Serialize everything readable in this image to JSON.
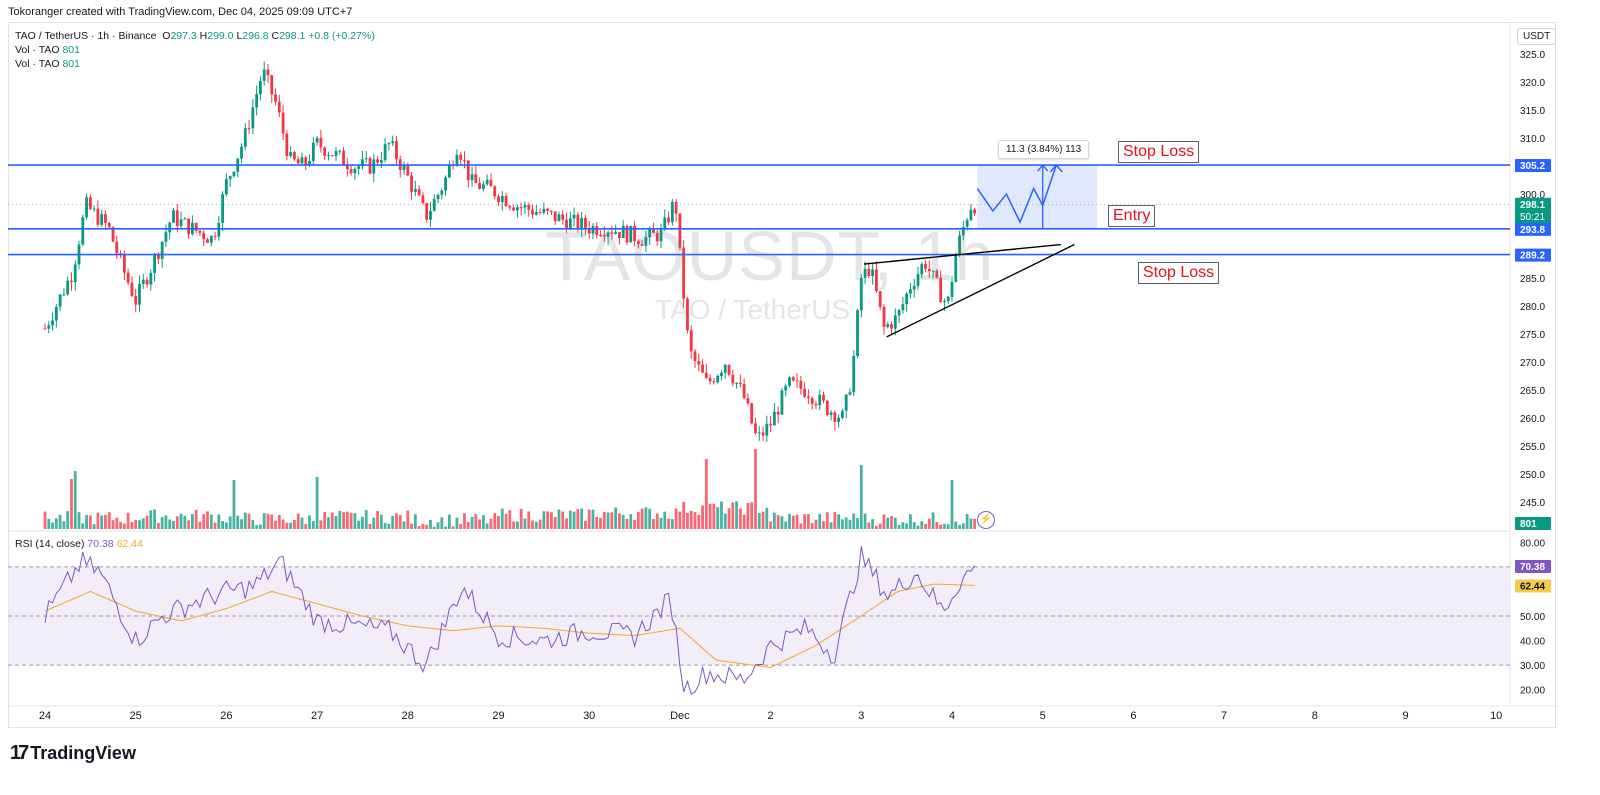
{
  "credit": "Tokoranger created with TradingView.com, Dec 04, 2025 09:09 UTC+7",
  "legend": {
    "symbol_line": "TAO / TetherUS · 1h · Binance",
    "o_label": "O",
    "o_val": "297.3",
    "h_label": "H",
    "h_val": "299.0",
    "l_label": "L",
    "l_val": "296.8",
    "c_label": "C",
    "c_val": "298.1",
    "change": "+0.8 (+0.27%)",
    "vol1_label": "Vol · TAO",
    "vol1_val": "801",
    "vol2_label": "Vol · TAO",
    "vol2_val": "801",
    "rsi_label": "RSI (14, close)",
    "rsi_val": "70.38",
    "rsi_ma_val": "62.44"
  },
  "watermark": {
    "main": "TAOUSDT, 1h",
    "sub": "TAO / TetherUS"
  },
  "currency": "USDT",
  "annotations": {
    "stop_loss_top": "Stop Loss",
    "entry": "Entry",
    "stop_loss_bottom": "Stop Loss",
    "measure": "11.3 (3.84%) 113"
  },
  "price_labels": {
    "level_top": "305.2",
    "last": "298.1",
    "countdown": "50:21",
    "level_entry": "293.8",
    "level_bottom": "289.2",
    "volume": "801",
    "rsi": "70.38",
    "rsi_ma": "62.44"
  },
  "logo": "TradingView",
  "colors": {
    "up": "#089981",
    "down": "#f23645",
    "level_line": "#2962ff",
    "rsi_line": "#7e57c2",
    "rsi_ma": "#f5a623",
    "rsi_band": "#ede7f6",
    "projection": "#2962ff"
  },
  "chart_data": {
    "type": "candlestick",
    "title": "TAO / TetherUS · 1h · Binance",
    "x_ticks": [
      "24",
      "25",
      "26",
      "27",
      "28",
      "29",
      "30",
      "Dec",
      "2",
      "3",
      "4",
      "5",
      "6",
      "7",
      "8",
      "9",
      "10"
    ],
    "y_ticks": [
      "325.0",
      "320.0",
      "315.0",
      "310.0",
      "305.0",
      "300.0",
      "285.0",
      "280.0",
      "275.0",
      "270.0",
      "265.0",
      "260.0",
      "255.0",
      "250.0",
      "245.0"
    ],
    "ylim": [
      240,
      327
    ],
    "rsi_ticks": [
      "80.00",
      "50.00",
      "40.00",
      "30.00",
      "20.00"
    ],
    "rsi_ylim": [
      17,
      83
    ],
    "rsi_bands": [
      30,
      50,
      70
    ],
    "horizontal_levels": [
      305.2,
      293.8,
      289.2
    ],
    "close_path": [
      [
        0,
        276
      ],
      [
        0.3,
        286
      ],
      [
        0.45,
        298
      ],
      [
        0.7,
        294
      ],
      [
        0.85,
        287
      ],
      [
        1,
        281
      ],
      [
        1.2,
        288
      ],
      [
        1.4,
        296
      ],
      [
        1.6,
        294
      ],
      [
        1.85,
        292
      ],
      [
        2,
        302
      ],
      [
        2.2,
        310
      ],
      [
        2.4,
        322
      ],
      [
        2.55,
        316
      ],
      [
        2.7,
        306
      ],
      [
        2.85,
        305
      ],
      [
        3,
        309
      ],
      [
        3.2,
        307
      ],
      [
        3.4,
        305
      ],
      [
        3.6,
        305
      ],
      [
        3.8,
        309
      ],
      [
        4,
        303
      ],
      [
        4.2,
        296
      ],
      [
        4.4,
        302
      ],
      [
        4.55,
        309
      ],
      [
        4.7,
        302
      ],
      [
        4.9,
        301
      ],
      [
        5,
        300
      ],
      [
        5.2,
        298
      ],
      [
        5.4,
        297
      ],
      [
        5.6,
        296
      ],
      [
        5.8,
        295
      ],
      [
        6,
        294
      ],
      [
        6.2,
        294
      ],
      [
        6.4,
        293
      ],
      [
        6.6,
        292
      ],
      [
        6.8,
        293
      ],
      [
        6.95,
        299
      ],
      [
        7,
        289
      ],
      [
        7.1,
        272
      ],
      [
        7.3,
        266
      ],
      [
        7.5,
        270
      ],
      [
        7.7,
        264
      ],
      [
        7.85,
        256
      ],
      [
        8,
        259
      ],
      [
        8.2,
        266
      ],
      [
        8.4,
        265
      ],
      [
        8.6,
        262
      ],
      [
        8.8,
        260
      ],
      [
        8.9,
        268
      ],
      [
        9,
        285
      ],
      [
        9.1,
        287
      ],
      [
        9.25,
        276
      ],
      [
        9.4,
        278
      ],
      [
        9.55,
        284
      ],
      [
        9.7,
        288
      ],
      [
        9.85,
        283
      ],
      [
        9.95,
        280
      ],
      [
        10.05,
        290
      ],
      [
        10.2,
        298
      ],
      [
        10.28,
        298.1
      ]
    ],
    "projection_path": [
      [
        10.28,
        301
      ],
      [
        10.45,
        297
      ],
      [
        10.6,
        300
      ],
      [
        10.75,
        295
      ],
      [
        10.9,
        301
      ],
      [
        11.0,
        298
      ],
      [
        11.15,
        305.2
      ]
    ],
    "wedge_upper": [
      [
        9.03,
        287.5
      ],
      [
        11.2,
        291.0
      ]
    ],
    "wedge_lower": [
      [
        9.28,
        274.5
      ],
      [
        11.35,
        291.0
      ]
    ],
    "target_box": {
      "x0": 10.28,
      "x1": 11.6,
      "y0": 293.8,
      "y1": 305.2
    },
    "volume": {
      "baseline_levels": [
        4,
        6,
        3,
        5,
        2,
        7,
        9,
        14,
        4,
        3
      ],
      "spikes": [
        [
          0.35,
          28
        ],
        [
          0.3,
          20
        ],
        [
          2.1,
          19
        ],
        [
          3.0,
          22
        ],
        [
          7.3,
          40
        ],
        [
          7.85,
          50
        ],
        [
          9.0,
          34
        ],
        [
          10.0,
          19
        ],
        [
          10.28,
          18
        ]
      ]
    },
    "rsi": {
      "values": [
        [
          0,
          50
        ],
        [
          0.4,
          72
        ],
        [
          0.6,
          68
        ],
        [
          1,
          40
        ],
        [
          1.3,
          50
        ],
        [
          1.6,
          55
        ],
        [
          2,
          60
        ],
        [
          2.3,
          62
        ],
        [
          2.6,
          72
        ],
        [
          3,
          48
        ],
        [
          3.4,
          46
        ],
        [
          3.8,
          44
        ],
        [
          4.2,
          30
        ],
        [
          4.6,
          62
        ],
        [
          5,
          42
        ],
        [
          5.5,
          40
        ],
        [
          6,
          44
        ],
        [
          6.5,
          42
        ],
        [
          6.9,
          57
        ],
        [
          7.05,
          20
        ],
        [
          7.3,
          27
        ],
        [
          7.7,
          24
        ],
        [
          8,
          38
        ],
        [
          8.4,
          45
        ],
        [
          8.7,
          34
        ],
        [
          9,
          74
        ],
        [
          9.3,
          58
        ],
        [
          9.6,
          68
        ],
        [
          9.9,
          52
        ],
        [
          10.1,
          65
        ],
        [
          10.28,
          70.38
        ]
      ],
      "ma": [
        [
          0,
          52
        ],
        [
          0.5,
          60
        ],
        [
          1,
          52
        ],
        [
          1.5,
          48
        ],
        [
          2,
          53
        ],
        [
          2.5,
          60
        ],
        [
          3,
          55
        ],
        [
          3.5,
          50
        ],
        [
          4,
          46
        ],
        [
          4.5,
          44
        ],
        [
          5,
          46
        ],
        [
          5.5,
          45
        ],
        [
          6,
          43
        ],
        [
          6.5,
          42
        ],
        [
          7,
          45
        ],
        [
          7.4,
          32
        ],
        [
          8,
          29
        ],
        [
          8.5,
          38
        ],
        [
          9,
          50
        ],
        [
          9.4,
          60
        ],
        [
          9.8,
          63
        ],
        [
          10.28,
          62.44
        ]
      ]
    }
  }
}
